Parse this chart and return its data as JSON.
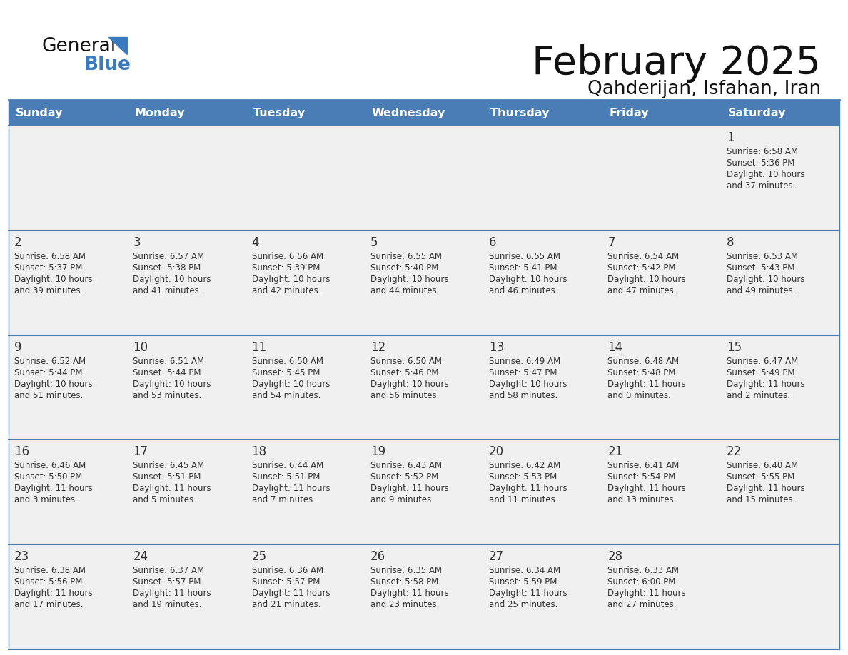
{
  "title": "February 2025",
  "subtitle": "Qahderijan, Isfahan, Iran",
  "header_bg": "#4a7cb5",
  "header_fg": "#ffffff",
  "bg_color": "#ffffff",
  "cell_bg": "#f0f0f0",
  "row_sep_color": "#4a7cb5",
  "text_color": "#333333",
  "days_of_week": [
    "Sunday",
    "Monday",
    "Tuesday",
    "Wednesday",
    "Thursday",
    "Friday",
    "Saturday"
  ],
  "calendar_data": [
    [
      null,
      null,
      null,
      null,
      null,
      null,
      {
        "day": "1",
        "sunrise": "6:58 AM",
        "sunset": "5:36 PM",
        "daylight_a": "Daylight: 10 hours",
        "daylight_b": "and 37 minutes."
      }
    ],
    [
      {
        "day": "2",
        "sunrise": "6:58 AM",
        "sunset": "5:37 PM",
        "daylight_a": "Daylight: 10 hours",
        "daylight_b": "and 39 minutes."
      },
      {
        "day": "3",
        "sunrise": "6:57 AM",
        "sunset": "5:38 PM",
        "daylight_a": "Daylight: 10 hours",
        "daylight_b": "and 41 minutes."
      },
      {
        "day": "4",
        "sunrise": "6:56 AM",
        "sunset": "5:39 PM",
        "daylight_a": "Daylight: 10 hours",
        "daylight_b": "and 42 minutes."
      },
      {
        "day": "5",
        "sunrise": "6:55 AM",
        "sunset": "5:40 PM",
        "daylight_a": "Daylight: 10 hours",
        "daylight_b": "and 44 minutes."
      },
      {
        "day": "6",
        "sunrise": "6:55 AM",
        "sunset": "5:41 PM",
        "daylight_a": "Daylight: 10 hours",
        "daylight_b": "and 46 minutes."
      },
      {
        "day": "7",
        "sunrise": "6:54 AM",
        "sunset": "5:42 PM",
        "daylight_a": "Daylight: 10 hours",
        "daylight_b": "and 47 minutes."
      },
      {
        "day": "8",
        "sunrise": "6:53 AM",
        "sunset": "5:43 PM",
        "daylight_a": "Daylight: 10 hours",
        "daylight_b": "and 49 minutes."
      }
    ],
    [
      {
        "day": "9",
        "sunrise": "6:52 AM",
        "sunset": "5:44 PM",
        "daylight_a": "Daylight: 10 hours",
        "daylight_b": "and 51 minutes."
      },
      {
        "day": "10",
        "sunrise": "6:51 AM",
        "sunset": "5:44 PM",
        "daylight_a": "Daylight: 10 hours",
        "daylight_b": "and 53 minutes."
      },
      {
        "day": "11",
        "sunrise": "6:50 AM",
        "sunset": "5:45 PM",
        "daylight_a": "Daylight: 10 hours",
        "daylight_b": "and 54 minutes."
      },
      {
        "day": "12",
        "sunrise": "6:50 AM",
        "sunset": "5:46 PM",
        "daylight_a": "Daylight: 10 hours",
        "daylight_b": "and 56 minutes."
      },
      {
        "day": "13",
        "sunrise": "6:49 AM",
        "sunset": "5:47 PM",
        "daylight_a": "Daylight: 10 hours",
        "daylight_b": "and 58 minutes."
      },
      {
        "day": "14",
        "sunrise": "6:48 AM",
        "sunset": "5:48 PM",
        "daylight_a": "Daylight: 11 hours",
        "daylight_b": "and 0 minutes."
      },
      {
        "day": "15",
        "sunrise": "6:47 AM",
        "sunset": "5:49 PM",
        "daylight_a": "Daylight: 11 hours",
        "daylight_b": "and 2 minutes."
      }
    ],
    [
      {
        "day": "16",
        "sunrise": "6:46 AM",
        "sunset": "5:50 PM",
        "daylight_a": "Daylight: 11 hours",
        "daylight_b": "and 3 minutes."
      },
      {
        "day": "17",
        "sunrise": "6:45 AM",
        "sunset": "5:51 PM",
        "daylight_a": "Daylight: 11 hours",
        "daylight_b": "and 5 minutes."
      },
      {
        "day": "18",
        "sunrise": "6:44 AM",
        "sunset": "5:51 PM",
        "daylight_a": "Daylight: 11 hours",
        "daylight_b": "and 7 minutes."
      },
      {
        "day": "19",
        "sunrise": "6:43 AM",
        "sunset": "5:52 PM",
        "daylight_a": "Daylight: 11 hours",
        "daylight_b": "and 9 minutes."
      },
      {
        "day": "20",
        "sunrise": "6:42 AM",
        "sunset": "5:53 PM",
        "daylight_a": "Daylight: 11 hours",
        "daylight_b": "and 11 minutes."
      },
      {
        "day": "21",
        "sunrise": "6:41 AM",
        "sunset": "5:54 PM",
        "daylight_a": "Daylight: 11 hours",
        "daylight_b": "and 13 minutes."
      },
      {
        "day": "22",
        "sunrise": "6:40 AM",
        "sunset": "5:55 PM",
        "daylight_a": "Daylight: 11 hours",
        "daylight_b": "and 15 minutes."
      }
    ],
    [
      {
        "day": "23",
        "sunrise": "6:38 AM",
        "sunset": "5:56 PM",
        "daylight_a": "Daylight: 11 hours",
        "daylight_b": "and 17 minutes."
      },
      {
        "day": "24",
        "sunrise": "6:37 AM",
        "sunset": "5:57 PM",
        "daylight_a": "Daylight: 11 hours",
        "daylight_b": "and 19 minutes."
      },
      {
        "day": "25",
        "sunrise": "6:36 AM",
        "sunset": "5:57 PM",
        "daylight_a": "Daylight: 11 hours",
        "daylight_b": "and 21 minutes."
      },
      {
        "day": "26",
        "sunrise": "6:35 AM",
        "sunset": "5:58 PM",
        "daylight_a": "Daylight: 11 hours",
        "daylight_b": "and 23 minutes."
      },
      {
        "day": "27",
        "sunrise": "6:34 AM",
        "sunset": "5:59 PM",
        "daylight_a": "Daylight: 11 hours",
        "daylight_b": "and 25 minutes."
      },
      {
        "day": "28",
        "sunrise": "6:33 AM",
        "sunset": "6:00 PM",
        "daylight_a": "Daylight: 11 hours",
        "daylight_b": "and 27 minutes."
      },
      null
    ]
  ]
}
